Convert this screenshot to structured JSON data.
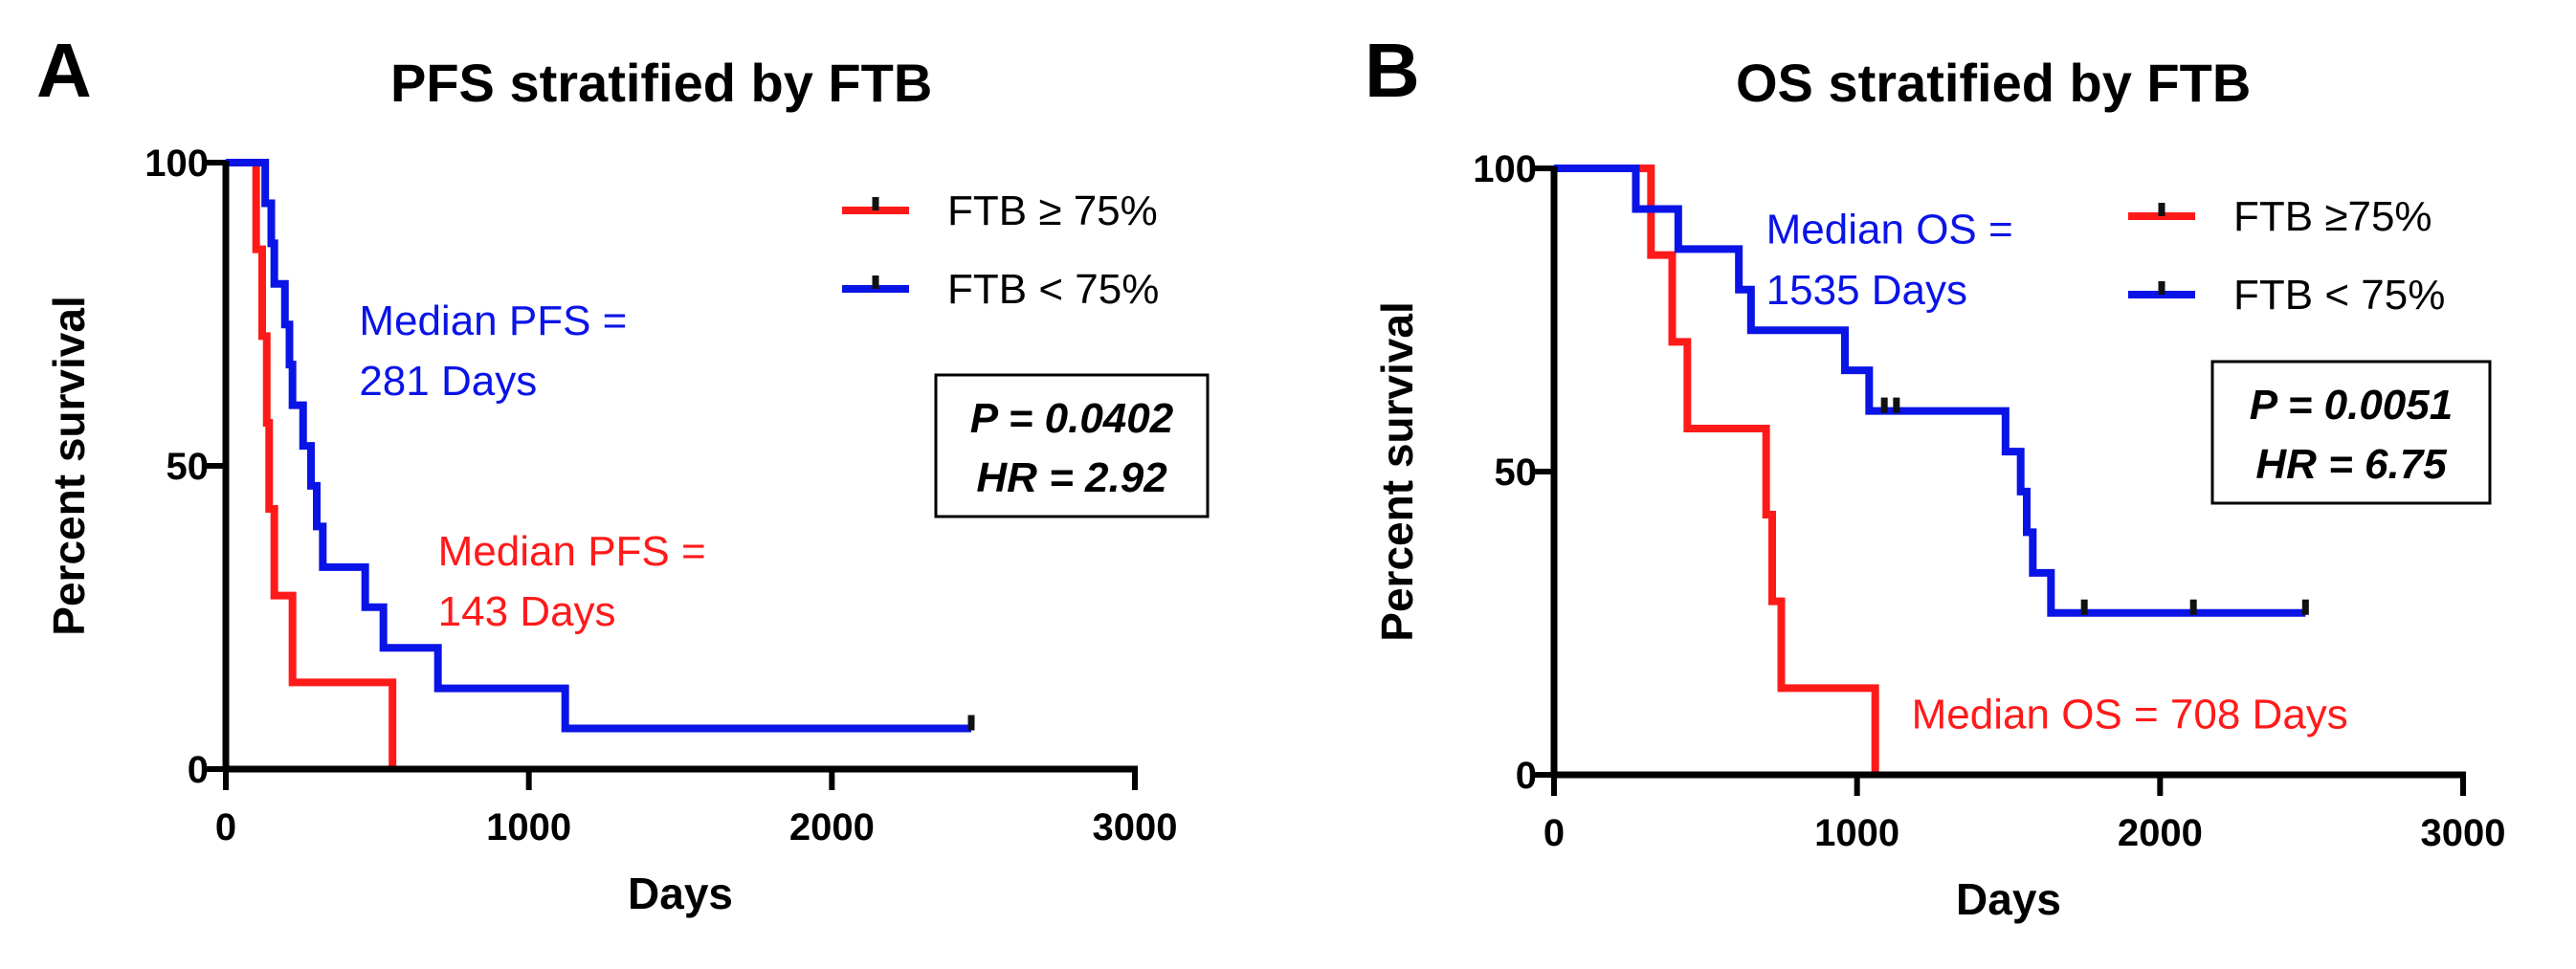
{
  "chart_data": [
    {
      "type": "line",
      "panel_label": "A",
      "title": "PFS stratified by FTB",
      "xlabel": "Days",
      "ylabel": "Percent survival",
      "xlim": [
        0,
        3000
      ],
      "ylim": [
        0,
        100
      ],
      "x_ticks": [
        0,
        1000,
        2000,
        3000
      ],
      "y_ticks": [
        0,
        50,
        100
      ],
      "x_tick_labels": [
        "0",
        "1000",
        "2000",
        "3000"
      ],
      "y_tick_labels": [
        "0",
        "50",
        "100"
      ],
      "legend_position": "top-right",
      "series": [
        {
          "name": "FTB ≥ 75%",
          "color": "#ff1a1a",
          "steps": [
            [
              0,
              100
            ],
            [
              100,
              100
            ],
            [
              100,
              85.7
            ],
            [
              120,
              85.7
            ],
            [
              120,
              71.4
            ],
            [
              135,
              71.4
            ],
            [
              135,
              57.1
            ],
            [
              143,
              57.1
            ],
            [
              143,
              42.9
            ],
            [
              160,
              42.9
            ],
            [
              160,
              28.6
            ],
            [
              220,
              28.6
            ],
            [
              220,
              14.3
            ],
            [
              550,
              14.3
            ],
            [
              550,
              0
            ]
          ],
          "censored": []
        },
        {
          "name": "FTB < 75%",
          "color": "#0a14e6",
          "steps": [
            [
              0,
              100
            ],
            [
              130,
              100
            ],
            [
              130,
              93.3
            ],
            [
              150,
              93.3
            ],
            [
              150,
              86.7
            ],
            [
              160,
              86.7
            ],
            [
              160,
              80
            ],
            [
              195,
              80
            ],
            [
              195,
              73.3
            ],
            [
              210,
              73.3
            ],
            [
              210,
              66.7
            ],
            [
              220,
              66.7
            ],
            [
              220,
              60
            ],
            [
              255,
              60
            ],
            [
              255,
              53.3
            ],
            [
              281,
              53.3
            ],
            [
              281,
              46.7
            ],
            [
              300,
              46.7
            ],
            [
              300,
              40
            ],
            [
              320,
              40
            ],
            [
              320,
              33.3
            ],
            [
              460,
              33.3
            ],
            [
              460,
              26.7
            ],
            [
              520,
              26.7
            ],
            [
              520,
              20
            ],
            [
              700,
              20
            ],
            [
              700,
              13.3
            ],
            [
              1120,
              13.3
            ],
            [
              1120,
              6.7
            ],
            [
              2460,
              6.7
            ]
          ],
          "censored": [
            [
              2460,
              6.7
            ]
          ]
        }
      ],
      "annotations": [
        {
          "text": "Median PFS =",
          "color": "#0a14e6",
          "x": 440,
          "y": 74
        },
        {
          "text": "281 Days",
          "color": "#0a14e6",
          "x": 440,
          "y": 64
        },
        {
          "text": "Median PFS =",
          "color": "#ff1a1a",
          "x": 700,
          "y": 36
        },
        {
          "text": "143 Days",
          "color": "#ff1a1a",
          "x": 700,
          "y": 26
        }
      ],
      "stats": {
        "p": "P = 0.0402",
        "hr": "HR = 2.92"
      }
    },
    {
      "type": "line",
      "panel_label": "B",
      "title": "OS stratified by FTB",
      "xlabel": "Days",
      "ylabel": "Percent survival",
      "xlim": [
        0,
        3000
      ],
      "ylim": [
        0,
        100
      ],
      "x_ticks": [
        0,
        1000,
        2000,
        3000
      ],
      "y_ticks": [
        0,
        50,
        100
      ],
      "x_tick_labels": [
        "0",
        "1000",
        "2000",
        "3000"
      ],
      "y_tick_labels": [
        "0",
        "50",
        "100"
      ],
      "legend_position": "top-right",
      "series": [
        {
          "name": "FTB ≥75%",
          "color": "#ff1a1a",
          "steps": [
            [
              0,
              100
            ],
            [
              320,
              100
            ],
            [
              320,
              85.7
            ],
            [
              390,
              85.7
            ],
            [
              390,
              71.4
            ],
            [
              440,
              71.4
            ],
            [
              440,
              57.1
            ],
            [
              700,
              57.1
            ],
            [
              700,
              42.9
            ],
            [
              720,
              42.9
            ],
            [
              720,
              28.6
            ],
            [
              750,
              28.6
            ],
            [
              750,
              14.3
            ],
            [
              1060,
              14.3
            ],
            [
              1060,
              0
            ]
          ],
          "censored": []
        },
        {
          "name": "FTB < 75%",
          "color": "#0a14e6",
          "steps": [
            [
              0,
              100
            ],
            [
              270,
              100
            ],
            [
              270,
              93.3
            ],
            [
              410,
              93.3
            ],
            [
              410,
              86.7
            ],
            [
              610,
              86.7
            ],
            [
              610,
              80
            ],
            [
              650,
              80
            ],
            [
              650,
              73.3
            ],
            [
              960,
              73.3
            ],
            [
              960,
              66.7
            ],
            [
              1040,
              66.7
            ],
            [
              1040,
              60
            ],
            [
              1490,
              60
            ],
            [
              1490,
              53.3
            ],
            [
              1540,
              53.3
            ],
            [
              1540,
              46.7
            ],
            [
              1560,
              46.7
            ],
            [
              1560,
              40
            ],
            [
              1580,
              40
            ],
            [
              1580,
              33.3
            ],
            [
              1640,
              33.3
            ],
            [
              1640,
              26.7
            ],
            [
              2480,
              26.7
            ]
          ],
          "censored": [
            [
              1090,
              60
            ],
            [
              1130,
              60
            ],
            [
              1750,
              26.7
            ],
            [
              2110,
              26.7
            ],
            [
              2480,
              26.7
            ]
          ]
        }
      ],
      "annotations": [
        {
          "text": "Median OS =",
          "color": "#0a14e6",
          "x": 700,
          "y": 90
        },
        {
          "text": "1535 Days",
          "color": "#0a14e6",
          "x": 700,
          "y": 80
        },
        {
          "text": "Median OS = 708 Days",
          "color": "#ff1a1a",
          "x": 1180,
          "y": 10
        }
      ],
      "stats": {
        "p": "P = 0.0051",
        "hr": "HR = 6.75"
      }
    }
  ]
}
